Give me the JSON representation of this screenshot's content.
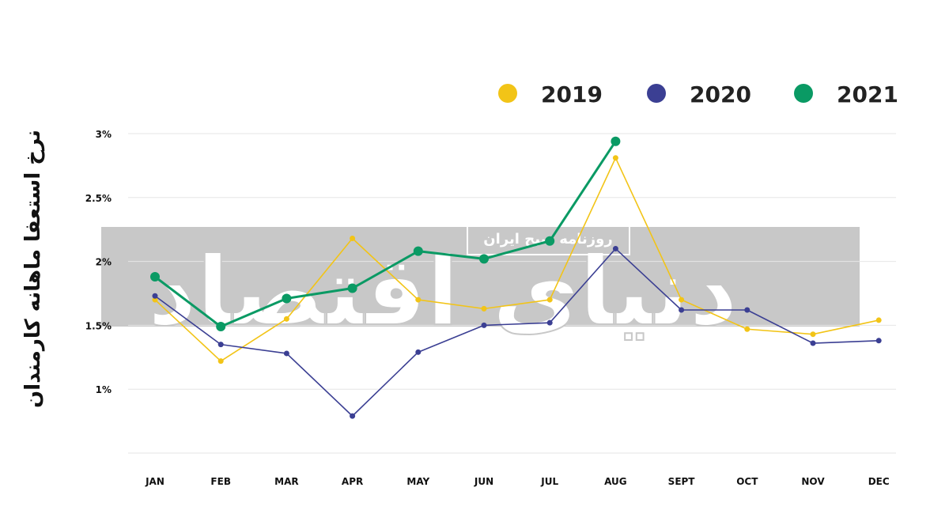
{
  "chart_data": {
    "type": "line",
    "ylabel": "نرخ استعفا ماهانه کارمندان",
    "categories": [
      "JAN",
      "FEB",
      "MAR",
      "APR",
      "MAY",
      "JUN",
      "JUL",
      "AUG",
      "SEPT",
      "OCT",
      "NOV",
      "DEC"
    ],
    "yticks": [
      "1%",
      "1.5%",
      "2%",
      "2.5%",
      "3%"
    ],
    "ytick_values": [
      1,
      1.5,
      2,
      2.5,
      3
    ],
    "ylim": [
      0.5,
      3
    ],
    "grid": true,
    "legend_position": "top-right",
    "series": [
      {
        "name": "2019",
        "color": "#f2c417",
        "values": [
          1.7,
          1.22,
          1.55,
          2.18,
          1.7,
          1.63,
          1.7,
          2.81,
          1.7,
          1.47,
          1.43,
          1.54
        ]
      },
      {
        "name": "2020",
        "color": "#3b3f93",
        "values": [
          1.73,
          1.35,
          1.28,
          0.79,
          1.29,
          1.5,
          1.52,
          2.1,
          1.62,
          1.62,
          1.36,
          1.38
        ]
      },
      {
        "name": "2021",
        "color": "#0a9a64",
        "values": [
          1.88,
          1.49,
          1.71,
          1.79,
          2.08,
          2.02,
          2.16,
          2.94,
          null,
          null,
          null,
          null
        ]
      }
    ]
  },
  "watermark": {
    "main_text": "دنیای اقتصاد",
    "banner_text": "روزنامه صبح ایران"
  }
}
